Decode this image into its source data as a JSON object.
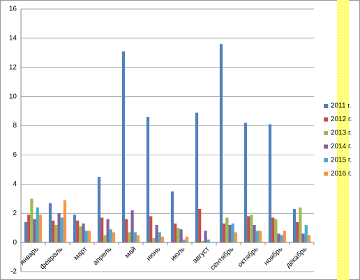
{
  "chart_data": {
    "type": "bar",
    "categories": [
      "январь",
      "февраль",
      "март",
      "апрель",
      "май",
      "июнь",
      "июль",
      "август",
      "сентябрь",
      "октябрь",
      "ноябрь",
      "декабрь"
    ],
    "series": [
      {
        "name": "2011 г.",
        "color": "#4f81bd",
        "values": [
          1.4,
          2.7,
          1.9,
          4.5,
          13.1,
          8.6,
          3.5,
          8.9,
          13.6,
          8.2,
          8.1,
          2.3
        ]
      },
      {
        "name": "2012 г.",
        "color": "#c0504d",
        "values": [
          1.9,
          1.5,
          1.5,
          1.7,
          1.6,
          1.8,
          1.3,
          2.3,
          1.3,
          1.8,
          1.7,
          1.4
        ]
      },
      {
        "name": "2013 г.",
        "color": "#9bbb59",
        "values": [
          3.0,
          1.2,
          1.1,
          0.5,
          0.7,
          0.3,
          1.0,
          0.1,
          1.7,
          1.9,
          1.6,
          2.4
        ]
      },
      {
        "name": "2014 г.",
        "color": "#8064a2",
        "values": [
          1.6,
          2.0,
          1.3,
          1.6,
          2.2,
          1.2,
          0.9,
          0.8,
          1.2,
          1.2,
          0.6,
          0.6
        ]
      },
      {
        "name": "2015 г.",
        "color": "#4bacc6",
        "values": [
          2.4,
          1.7,
          0.8,
          0.9,
          0.7,
          0.7,
          0.2,
          0.2,
          1.3,
          0.8,
          0.5,
          1.2
        ]
      },
      {
        "name": "2016 г.",
        "color": "#f79646",
        "values": [
          1.9,
          2.9,
          0.8,
          0.7,
          0.5,
          0.4,
          0.4,
          0.0,
          0.7,
          0.8,
          0.8,
          0.5
        ]
      }
    ],
    "ylim": [
      -2,
      16
    ],
    "yticks": [
      -2,
      0,
      2,
      4,
      6,
      8,
      10,
      12,
      14,
      16
    ],
    "grid": true,
    "legend": "right"
  }
}
